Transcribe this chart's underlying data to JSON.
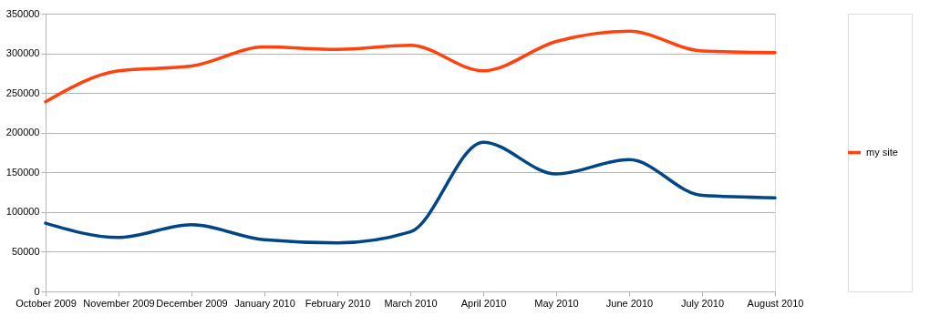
{
  "chart_data": {
    "type": "line",
    "categories": [
      "October 2009",
      "November 2009",
      "December 2009",
      "January 2010",
      "February 2010",
      "March 2010",
      "April 2010",
      "May 2010",
      "June 2010",
      "July 2010",
      "August 2010"
    ],
    "series": [
      {
        "color": "#004586",
        "values": [
          86000,
          68000,
          84000,
          65000,
          61000,
          75000,
          188000,
          148000,
          166000,
          121000,
          118000
        ]
      },
      {
        "name": "my site",
        "color": "#ff420e",
        "values": [
          239000,
          278000,
          284000,
          308000,
          305000,
          310000,
          278000,
          315000,
          328000,
          303000,
          301000
        ]
      }
    ],
    "ylim": [
      0,
      350000
    ],
    "yticks": [
      0,
      50000,
      100000,
      150000,
      200000,
      250000,
      300000,
      350000
    ],
    "grid": "y",
    "legend": "right",
    "marker": "none",
    "line_style": "solid"
  }
}
